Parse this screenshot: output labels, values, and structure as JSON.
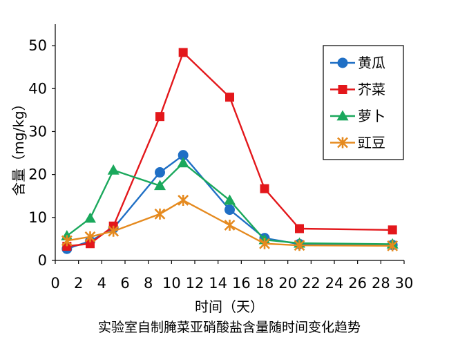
{
  "chart_data": {
    "type": "line",
    "title": "",
    "caption": "实验室自制腌菜亚硝酸盐含量随时间变化趋势",
    "xlabel": "时间（天）",
    "ylabel": "含量（mg/kg）",
    "xlim": [
      0,
      30
    ],
    "ylim": [
      0,
      55
    ],
    "xticks": [
      0,
      2,
      4,
      6,
      8,
      10,
      12,
      14,
      16,
      18,
      20,
      22,
      24,
      26,
      28,
      30
    ],
    "yticks": [
      0,
      10,
      20,
      30,
      40,
      50
    ],
    "grid": false,
    "legend_position": "top-right",
    "series": [
      {
        "name": "黄瓜",
        "color": "#1f6fc5",
        "marker": "circle",
        "points": [
          [
            1,
            2.7
          ],
          [
            3,
            4.5
          ],
          [
            5,
            7.5
          ],
          [
            9,
            20.5
          ],
          [
            11,
            24.5
          ],
          [
            15,
            11.8
          ],
          [
            18,
            5.2
          ],
          [
            21,
            3.8
          ],
          [
            29,
            3.6
          ]
        ]
      },
      {
        "name": "芥菜",
        "color": "#e3171b",
        "marker": "square",
        "points": [
          [
            1,
            3.3
          ],
          [
            3,
            3.9
          ],
          [
            5,
            8.0
          ],
          [
            9,
            33.5
          ],
          [
            11,
            48.4
          ],
          [
            15,
            38.0
          ],
          [
            18,
            16.7
          ],
          [
            21,
            7.4
          ],
          [
            29,
            7.1
          ]
        ]
      },
      {
        "name": "萝卜",
        "color": "#1aa85c",
        "marker": "triangle",
        "points": [
          [
            1,
            5.7
          ],
          [
            3,
            9.8
          ],
          [
            5,
            21.0
          ],
          [
            9,
            17.4
          ],
          [
            11,
            22.7
          ],
          [
            15,
            14.0
          ],
          [
            18,
            4.8
          ],
          [
            21,
            4.0
          ],
          [
            29,
            3.8
          ]
        ]
      },
      {
        "name": "豇豆",
        "color": "#e58a1f",
        "marker": "star",
        "points": [
          [
            1,
            4.6
          ],
          [
            3,
            5.5
          ],
          [
            5,
            6.8
          ],
          [
            9,
            10.8
          ],
          [
            11,
            14.0
          ],
          [
            15,
            8.2
          ],
          [
            18,
            3.9
          ],
          [
            21,
            3.5
          ],
          [
            29,
            3.4
          ]
        ]
      }
    ]
  }
}
